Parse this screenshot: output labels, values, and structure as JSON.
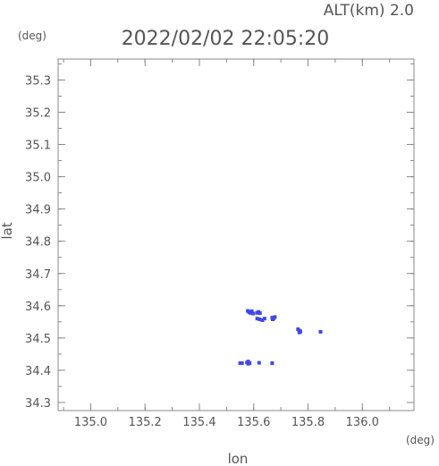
{
  "header": {
    "alt_label": "ALT(km) 2.0",
    "timestamp": "2022/02/02 22:05:20"
  },
  "chart_data": {
    "type": "scatter",
    "title": "2022/02/02 22:05:20",
    "xlabel": "lon",
    "ylabel": "lat",
    "x_unit": "(deg)",
    "y_unit": "(deg)",
    "xlim": [
      134.88,
      136.19
    ],
    "ylim": [
      34.275,
      35.365
    ],
    "x_ticks": [
      135.0,
      135.2,
      135.4,
      135.6,
      135.8,
      136.0
    ],
    "x_tick_labels": [
      "135.0",
      "135.2",
      "135.4",
      "135.6",
      "135.8",
      "136.0"
    ],
    "y_ticks": [
      34.3,
      34.4,
      34.5,
      34.6,
      34.7,
      34.8,
      34.9,
      35.0,
      35.1,
      35.2,
      35.3
    ],
    "y_tick_labels": [
      "34.3",
      "34.4",
      "34.5",
      "34.6",
      "34.7",
      "34.8",
      "34.9",
      "35.0",
      "35.1",
      "35.2",
      "35.3"
    ],
    "grid": false,
    "marker_color": "#3f49e6",
    "series": [
      {
        "x": [
          135.578,
          135.583,
          135.588,
          135.593,
          135.598,
          135.612,
          135.618,
          135.623,
          135.613,
          135.622,
          135.632,
          135.64,
          135.668,
          135.673,
          135.678,
          135.67,
          135.763,
          135.768,
          135.772,
          135.768,
          135.846,
          135.55,
          135.557,
          135.575,
          135.58,
          135.585,
          135.58,
          135.62,
          135.668
        ],
        "y": [
          34.584,
          34.58,
          34.578,
          34.583,
          34.576,
          34.578,
          34.581,
          34.577,
          34.56,
          34.558,
          34.555,
          34.56,
          34.563,
          34.56,
          34.565,
          34.558,
          34.527,
          34.523,
          34.52,
          34.517,
          34.519,
          34.422,
          34.422,
          34.424,
          34.427,
          34.422,
          34.42,
          34.423,
          34.422
        ]
      }
    ]
  }
}
